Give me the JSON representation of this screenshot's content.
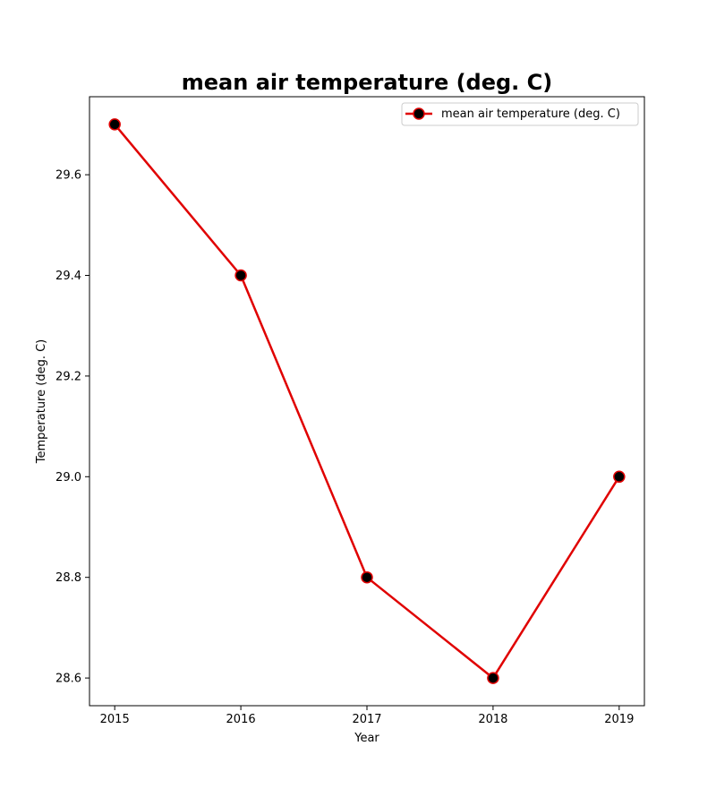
{
  "chart_data": {
    "type": "line",
    "title": "mean air temperature (deg. C)",
    "xlabel": "Year",
    "ylabel": "Temperature (deg. C)",
    "x": [
      2015,
      2016,
      2017,
      2018,
      2019
    ],
    "x_tick_labels": [
      "2015",
      "2016",
      "2017",
      "2018",
      "2019"
    ],
    "y_ticks": [
      28.6,
      28.8,
      29.0,
      29.2,
      29.4,
      29.6
    ],
    "y_tick_labels": [
      "28.6",
      "28.8",
      "29.0",
      "29.2",
      "29.4",
      "29.6"
    ],
    "xlim": [
      2014.8,
      2019.2
    ],
    "ylim": [
      28.545,
      29.755
    ],
    "grid": false,
    "legend_position": "top-right",
    "series": [
      {
        "name": "mean air temperature (deg. C)",
        "values": [
          29.7,
          29.4,
          28.8,
          28.6,
          29.0
        ],
        "line_color": "#e00000",
        "marker_color": "#000000",
        "marker": "circle"
      }
    ]
  }
}
